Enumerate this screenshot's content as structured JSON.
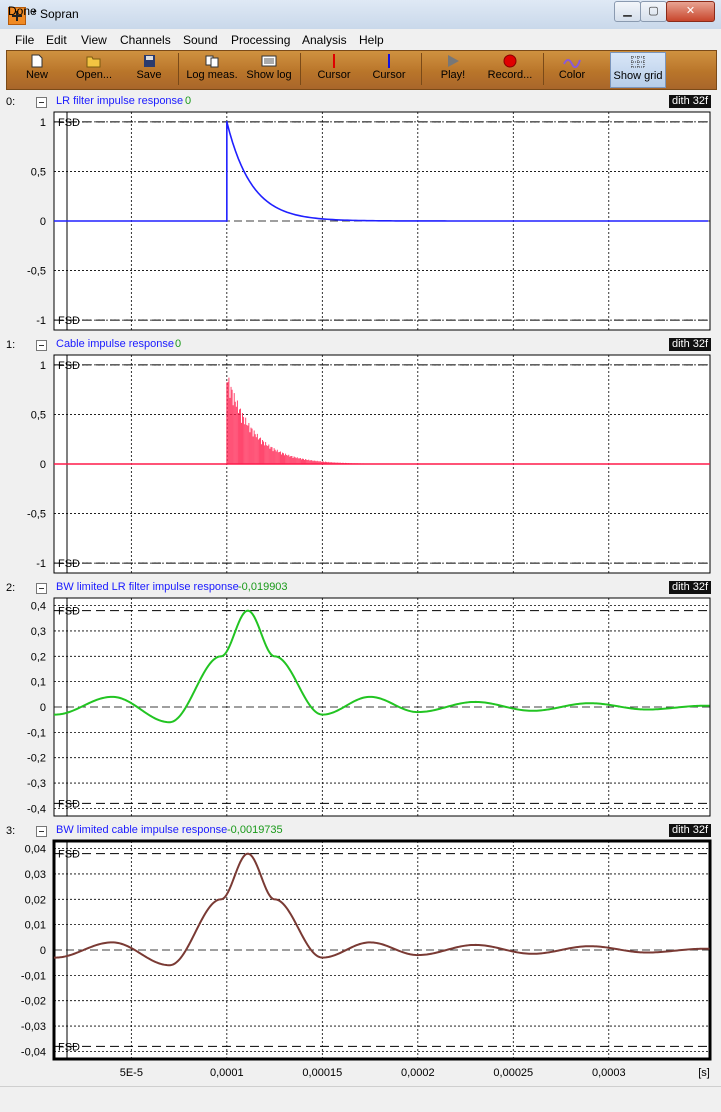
{
  "window": {
    "title": "* Sopran",
    "minimize": "▁",
    "maximize": "▢",
    "close": "✕"
  },
  "menu": [
    "File",
    "Edit",
    "View",
    "Channels",
    "Sound",
    "Processing",
    "Analysis",
    "Help"
  ],
  "toolbar": [
    {
      "label": "New",
      "icon": "new-file-icon"
    },
    {
      "label": "Open...",
      "icon": "open-folder-icon"
    },
    {
      "label": "Save",
      "icon": "save-disk-icon"
    },
    {
      "label": "Log meas.",
      "icon": "log-measurement-icon"
    },
    {
      "label": "Show log",
      "icon": "show-log-icon"
    },
    {
      "label": "Cursor",
      "icon": "red-cursor-icon",
      "color": "#e00000"
    },
    {
      "label": "Cursor",
      "icon": "blue-cursor-icon",
      "color": "#1010e0"
    },
    {
      "label": "Play!",
      "icon": "play-icon"
    },
    {
      "label": "Record...",
      "icon": "record-icon"
    },
    {
      "label": "Color",
      "icon": "color-icon"
    },
    {
      "label": "Show grid",
      "icon": "grid-icon",
      "active": true
    }
  ],
  "channels": [
    {
      "index": "0:",
      "name": "LR filter impulse response",
      "value": "0",
      "badge": "dith 32f",
      "fsd": "FSD",
      "color": "#2020ff",
      "yticks": [
        "1",
        "0,5",
        "0",
        "-0,5",
        "-1"
      ]
    },
    {
      "index": "1:",
      "name": "Cable impulse response",
      "value": "0",
      "badge": "dith 32f",
      "fsd": "FSD",
      "color": "#ff1a4a",
      "yticks": [
        "1",
        "0,5",
        "0",
        "-0,5",
        "-1"
      ]
    },
    {
      "index": "2:",
      "name": "BW limited LR filter impulse response",
      "value": "-0,019903",
      "badge": "dith 32f",
      "fsd": "FSD",
      "color": "#22c422",
      "yticks": [
        "0,4",
        "0,3",
        "0,2",
        "0,1",
        "0",
        "-0,1",
        "-0,2",
        "-0,3",
        "-0,4"
      ]
    },
    {
      "index": "3:",
      "name": "BW limited cable impulse response",
      "value": "-0,0019735",
      "badge": "dith 32f",
      "fsd": "FSD",
      "color": "#7a3a34",
      "yticks": [
        "0,04",
        "0,03",
        "0,02",
        "0,01",
        "0",
        "-0,01",
        "-0,02",
        "-0,03",
        "-0,04"
      ]
    }
  ],
  "xaxis": {
    "ticks": [
      "5E-5",
      "0,0001",
      "0,00015",
      "0,0002",
      "0,00025",
      "0,0003"
    ],
    "unit": "[s]"
  },
  "status": "Done",
  "chart_data": [
    {
      "type": "line",
      "title": "LR filter impulse response",
      "ylim": [
        -1.1,
        1.1
      ],
      "xlim": [
        0,
        0.00035
      ],
      "series": [
        {
          "name": "LR filter impulse response",
          "x": [
            0,
            9.99e-05,
            0.0001,
            0.00011,
            0.00012,
            0.00013,
            0.00015,
            0.0002,
            0.00035
          ],
          "values": [
            0,
            0,
            1,
            0.45,
            0.2,
            0.09,
            0.02,
            0,
            0
          ]
        }
      ]
    },
    {
      "type": "bar",
      "title": "Cable impulse response",
      "ylim": [
        -1.1,
        1.1
      ],
      "xlim": [
        0,
        0.00035
      ],
      "series": [
        {
          "name": "Cable impulse response",
          "x": [
            0,
            9.99e-05,
            0.0001,
            0.00011,
            0.00012,
            0.00013,
            0.00015,
            0.0002,
            0.00035
          ],
          "values": [
            0,
            0,
            0.95,
            0.45,
            0.2,
            0.09,
            0.02,
            0,
            0
          ]
        }
      ]
    },
    {
      "type": "line",
      "title": "BW limited LR filter impulse response",
      "ylim": [
        -0.43,
        0.43
      ],
      "xlim": [
        0,
        0.00035
      ],
      "grid": true,
      "series": [
        {
          "name": "BW limited LR filter impulse response",
          "x": [
            0,
            1e-05,
            4e-05,
            7e-05,
            9.7e-05,
            0.000111,
            0.000125,
            0.00015,
            0.000175,
            0.0002,
            0.00023,
            0.00026,
            0.00029,
            0.00032,
            0.00035
          ],
          "values": [
            -0.02,
            -0.03,
            0.04,
            -0.06,
            0.2,
            0.38,
            0.2,
            -0.03,
            0.04,
            -0.02,
            0.02,
            -0.015,
            0.015,
            -0.01,
            0.005
          ]
        }
      ]
    },
    {
      "type": "line",
      "title": "BW limited cable impulse response",
      "ylim": [
        -0.043,
        0.043
      ],
      "xlim": [
        0,
        0.00035
      ],
      "grid": true,
      "series": [
        {
          "name": "BW limited cable impulse response",
          "x": [
            0,
            1e-05,
            4e-05,
            7e-05,
            9.7e-05,
            0.000111,
            0.000125,
            0.00015,
            0.000175,
            0.0002,
            0.00023,
            0.00026,
            0.00029,
            0.00032,
            0.00035
          ],
          "values": [
            -0.002,
            -0.003,
            0.003,
            -0.006,
            0.02,
            0.038,
            0.02,
            -0.003,
            0.003,
            -0.002,
            0.002,
            -0.0015,
            0.0015,
            -0.001,
            0.0005
          ]
        }
      ]
    }
  ]
}
